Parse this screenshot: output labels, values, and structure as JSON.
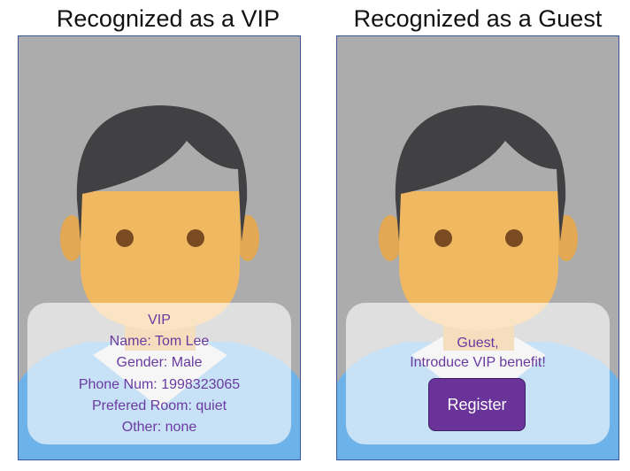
{
  "colors": {
    "background": "#acacac",
    "hair": "#414042",
    "skin": "#f1b862",
    "eyes": "#7a4a22",
    "shirt": "#6db2e9",
    "card_text": "#6a3aa0",
    "button": "#6a3399",
    "frame_border": "#3a5894"
  },
  "vip_panel": {
    "title": "Recognized as a VIP",
    "card_lines": [
      "VIP",
      "Name: Tom Lee",
      "Gender: Male",
      "Phone Num: 1998323065",
      "Prefered Room: quiet",
      "Other: none"
    ]
  },
  "guest_panel": {
    "title": "Recognized as a Guest",
    "card_lines": [
      "Guest,",
      "Introduce VIP benefit!"
    ],
    "register_label": "Register"
  }
}
